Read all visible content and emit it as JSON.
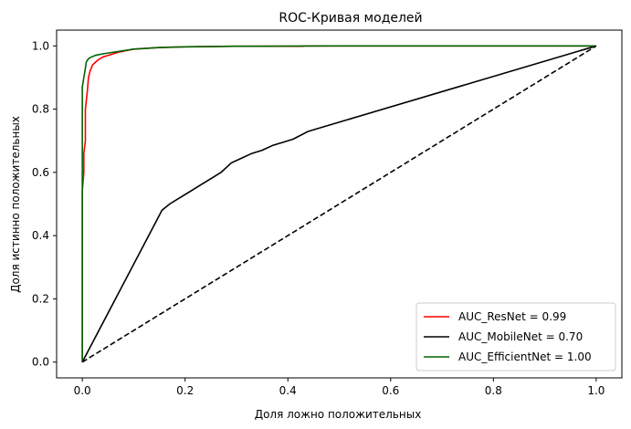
{
  "chart_data": {
    "type": "line",
    "title": "ROC-Кривая моделей",
    "xlabel": "Доля ложно положительных",
    "ylabel": "Доля истинно положительных",
    "xlim": [
      -0.05,
      1.05
    ],
    "ylim": [
      -0.05,
      1.05
    ],
    "xticks": [
      0.0,
      0.2,
      0.4,
      0.6,
      0.8,
      1.0
    ],
    "yticks": [
      0.0,
      0.2,
      0.4,
      0.6,
      0.8,
      1.0
    ],
    "xtick_labels": [
      "0.0",
      "0.2",
      "0.4",
      "0.6",
      "0.8",
      "1.0"
    ],
    "ytick_labels": [
      "0.0",
      "0.2",
      "0.4",
      "0.6",
      "0.8",
      "1.0"
    ],
    "grid": false,
    "legend_position": "bottom-right",
    "series": [
      {
        "name": "AUC_ResNet = 0.99",
        "color": "#ff0000",
        "style": "solid",
        "x": [
          0.0,
          0.0,
          0.003,
          0.003,
          0.006,
          0.006,
          0.01,
          0.012,
          0.015,
          0.02,
          0.03,
          0.04,
          0.05,
          0.07,
          0.1,
          0.15,
          0.2,
          0.3,
          0.43,
          0.43,
          1.0
        ],
        "y": [
          0.0,
          0.54,
          0.6,
          0.66,
          0.7,
          0.8,
          0.86,
          0.9,
          0.92,
          0.94,
          0.955,
          0.965,
          0.97,
          0.98,
          0.99,
          0.995,
          0.997,
          0.999,
          0.999,
          1.0,
          1.0
        ]
      },
      {
        "name": "AUC_MobileNet = 0.70",
        "color": "#000000",
        "style": "solid",
        "x": [
          0.0,
          0.155,
          0.17,
          0.19,
          0.21,
          0.23,
          0.25,
          0.27,
          0.29,
          0.31,
          0.33,
          0.35,
          0.37,
          0.39,
          0.41,
          0.44,
          1.0
        ],
        "y": [
          0.0,
          0.48,
          0.5,
          0.52,
          0.54,
          0.56,
          0.58,
          0.6,
          0.63,
          0.645,
          0.66,
          0.67,
          0.685,
          0.695,
          0.705,
          0.73,
          1.0
        ]
      },
      {
        "name": "AUC_EfficientNet = 1.00",
        "color": "#006400",
        "style": "solid",
        "x": [
          0.0,
          0.0,
          0.002,
          0.004,
          0.006,
          0.008,
          0.012,
          0.018,
          0.025,
          0.04,
          0.06,
          0.1,
          0.15,
          0.2,
          0.3,
          0.5,
          1.0
        ],
        "y": [
          0.0,
          0.87,
          0.89,
          0.91,
          0.93,
          0.95,
          0.96,
          0.965,
          0.97,
          0.975,
          0.98,
          0.99,
          0.995,
          0.997,
          0.999,
          1.0,
          1.0
        ]
      },
      {
        "name": "",
        "color": "#000000",
        "style": "dashed",
        "x": [
          0.0,
          1.0
        ],
        "y": [
          0.0,
          1.0
        ]
      }
    ]
  }
}
